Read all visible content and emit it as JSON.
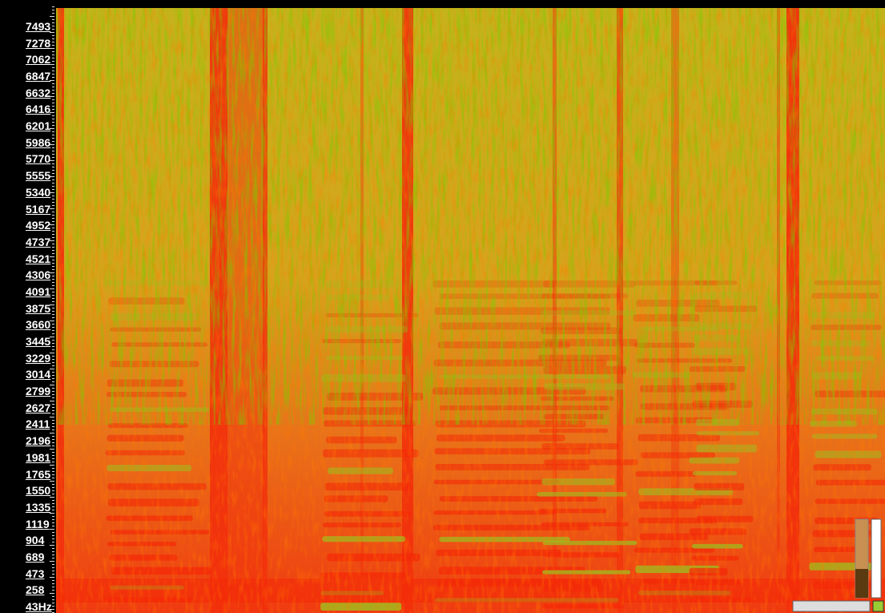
{
  "frequency_labels": [
    "7493",
    "7278",
    "7062",
    "6847",
    "6632",
    "6416",
    "6201",
    "5986",
    "5770",
    "5555",
    "5340",
    "5167",
    "4952",
    "4737",
    "4521",
    "4306",
    "4091",
    "3875",
    "3660",
    "3445",
    "3229",
    "3014",
    "2799",
    "2627",
    "2411",
    "2196",
    "1981",
    "1765",
    "1550",
    "1335",
    "1119",
    "904",
    "689",
    "473",
    "258",
    "43Hz"
  ]
}
